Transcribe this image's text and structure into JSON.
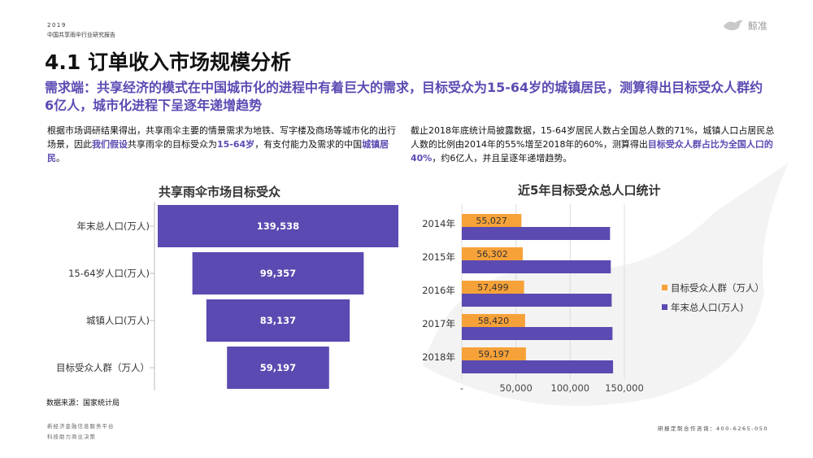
{
  "header": {
    "year": "2019",
    "report": "中国共享雨伞行业研究报告",
    "logo_text": "鲸准"
  },
  "title": "4.1 订单收入市场规模分析",
  "headline": "需求端：共享经济的模式在中国城市化的进程中有着巨大的需求，目标受众为15-64岁的城镇居民，测算得出目标受众人群约6亿人，城市化进程下呈逐年递增趋势",
  "left_text": {
    "p1": "根据市场调研结果得出，共享雨伞主要的情景需求为地铁、写字楼及商场等城市化的出行场景，因此",
    "h1": "我们假设",
    "p2": "共享雨伞的目标受众为",
    "h2": "15-64岁",
    "p3": "，有支付能力及需求的中国",
    "h3": "城镇居民",
    "p4": "。"
  },
  "right_text": {
    "p1": "截止2018年底统计局披露数据，15-64岁居民人数占全国总人数的71%，城镇人口占居民总人数的比例由2014年的55%增至2018年的60%，测算得出",
    "h1": "目标受众人群占比为全国人口的40%",
    "p2": "，约6亿人，并且呈逐年递增趋势。"
  },
  "source": "数据来源：国家统计局",
  "footer": {
    "left1": "新经济金融信息服务平台",
    "left2": "科技助力商业决策",
    "right": "研报定制合作咨询：400-6265-050"
  },
  "colors": {
    "purple": "#5a4ab1",
    "orange": "#f7a239",
    "accent": "#5b4bb3"
  },
  "chart_data": [
    {
      "type": "bar",
      "title": "共享雨伞市场目标受众",
      "categories": [
        "年末总人口(万人)",
        "15-64岁人口(万人)",
        "城镇人口(万人)",
        "目标受众人群（万人）"
      ],
      "values": [
        139538,
        99357,
        83137,
        59197
      ],
      "value_labels": [
        "139,538",
        "99,357",
        "83,137",
        "59,197"
      ],
      "style": "funnel"
    },
    {
      "type": "bar",
      "orientation": "horizontal",
      "title": "近5年目标受众总人口统计",
      "categories": [
        "2014年",
        "2015年",
        "2016年",
        "2017年",
        "2018年"
      ],
      "series": [
        {
          "name": "目标受众人群（万人）",
          "values": [
            55027,
            56302,
            57499,
            58420,
            59197
          ],
          "labels": [
            "55,027",
            "56,302",
            "57,499",
            "58,420",
            "59,197"
          ]
        },
        {
          "name": "年末总人口(万人)",
          "values": [
            136782,
            137462,
            138271,
            139008,
            139538
          ]
        }
      ],
      "xticks": [
        "-",
        "50,000",
        "100,000",
        "150,000"
      ],
      "xlim": [
        0,
        150000
      ],
      "grid": true,
      "legend": "right"
    }
  ]
}
